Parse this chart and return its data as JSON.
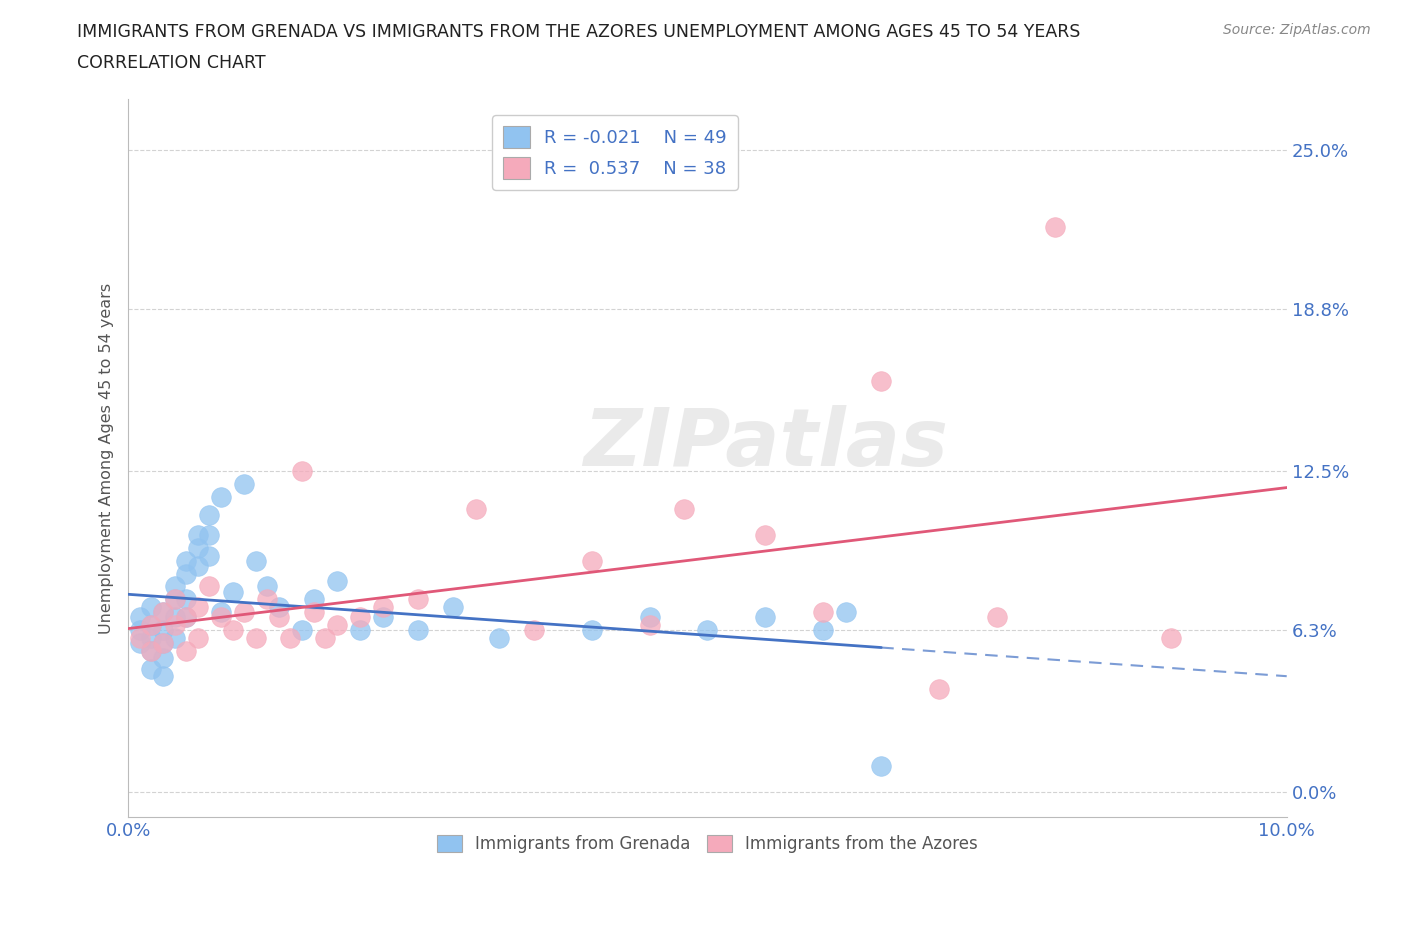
{
  "title_line1": "IMMIGRANTS FROM GRENADA VS IMMIGRANTS FROM THE AZORES UNEMPLOYMENT AMONG AGES 45 TO 54 YEARS",
  "title_line2": "CORRELATION CHART",
  "source": "Source: ZipAtlas.com",
  "ylabel": "Unemployment Among Ages 45 to 54 years",
  "xlim": [
    0.0,
    0.1
  ],
  "ylim": [
    -0.01,
    0.27
  ],
  "yticks": [
    0.0,
    0.063,
    0.125,
    0.188,
    0.25
  ],
  "ytick_labels": [
    "0.0%",
    "6.3%",
    "12.5%",
    "18.8%",
    "25.0%"
  ],
  "xticks": [
    0.0,
    0.02,
    0.04,
    0.06,
    0.08,
    0.1
  ],
  "xtick_labels": [
    "0.0%",
    "",
    "",
    "",
    "",
    "10.0%"
  ],
  "grenada_R": -0.021,
  "grenada_N": 49,
  "azores_R": 0.537,
  "azores_N": 38,
  "color_grenada": "#91C3F0",
  "color_azores": "#F5AABB",
  "color_grenada_line": "#4472C4",
  "color_azores_line": "#E05878",
  "color_axis_labels": "#4472C4",
  "background_color": "#FFFFFF",
  "watermark_text": "ZIPatlas",
  "grenada_x": [
    0.001,
    0.001,
    0.001,
    0.002,
    0.002,
    0.002,
    0.002,
    0.002,
    0.003,
    0.003,
    0.003,
    0.003,
    0.003,
    0.004,
    0.004,
    0.004,
    0.004,
    0.005,
    0.005,
    0.005,
    0.005,
    0.006,
    0.006,
    0.006,
    0.007,
    0.007,
    0.007,
    0.008,
    0.008,
    0.009,
    0.01,
    0.011,
    0.012,
    0.013,
    0.015,
    0.016,
    0.018,
    0.02,
    0.022,
    0.025,
    0.028,
    0.032,
    0.04,
    0.045,
    0.05,
    0.055,
    0.06,
    0.062,
    0.065
  ],
  "grenada_y": [
    0.063,
    0.068,
    0.058,
    0.072,
    0.065,
    0.06,
    0.055,
    0.048,
    0.07,
    0.063,
    0.058,
    0.052,
    0.045,
    0.08,
    0.075,
    0.068,
    0.06,
    0.09,
    0.085,
    0.075,
    0.068,
    0.095,
    0.088,
    0.1,
    0.108,
    0.1,
    0.092,
    0.115,
    0.07,
    0.078,
    0.12,
    0.09,
    0.08,
    0.072,
    0.063,
    0.075,
    0.082,
    0.063,
    0.068,
    0.063,
    0.072,
    0.06,
    0.063,
    0.068,
    0.063,
    0.068,
    0.063,
    0.07,
    0.01
  ],
  "azores_x": [
    0.001,
    0.002,
    0.002,
    0.003,
    0.003,
    0.004,
    0.004,
    0.005,
    0.005,
    0.006,
    0.006,
    0.007,
    0.008,
    0.009,
    0.01,
    0.011,
    0.012,
    0.013,
    0.014,
    0.015,
    0.016,
    0.017,
    0.018,
    0.02,
    0.022,
    0.025,
    0.03,
    0.035,
    0.04,
    0.045,
    0.048,
    0.055,
    0.06,
    0.065,
    0.07,
    0.075,
    0.08,
    0.09
  ],
  "azores_y": [
    0.06,
    0.065,
    0.055,
    0.07,
    0.058,
    0.075,
    0.065,
    0.068,
    0.055,
    0.072,
    0.06,
    0.08,
    0.068,
    0.063,
    0.07,
    0.06,
    0.075,
    0.068,
    0.06,
    0.125,
    0.07,
    0.06,
    0.065,
    0.068,
    0.072,
    0.075,
    0.11,
    0.063,
    0.09,
    0.065,
    0.11,
    0.1,
    0.07,
    0.16,
    0.04,
    0.068,
    0.22,
    0.06
  ]
}
